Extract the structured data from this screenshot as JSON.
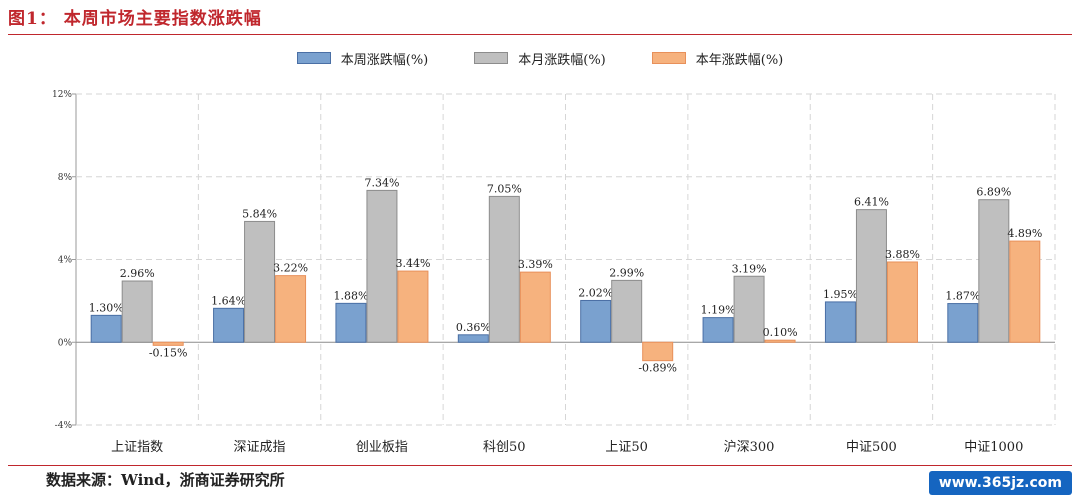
{
  "figure": {
    "title": "图1： 本周市场主要指数涨跌幅",
    "source": "数据来源：Wind，浙商证券研究所",
    "watermark": "www.365jz.com"
  },
  "chart_data": {
    "type": "bar",
    "categories": [
      "上证指数",
      "深证成指",
      "创业板指",
      "科创50",
      "上证50",
      "沪深300",
      "中证500",
      "中证1000"
    ],
    "series": [
      {
        "name": "本周涨跌幅(%)",
        "color": "#7aa1cf",
        "stroke": "#4a6fa5",
        "values": [
          1.3,
          1.64,
          1.88,
          0.36,
          2.02,
          1.19,
          1.95,
          1.87
        ]
      },
      {
        "name": "本月涨跌幅(%)",
        "color": "#bfbfbf",
        "stroke": "#8c8c8c",
        "values": [
          2.96,
          5.84,
          7.34,
          7.05,
          2.99,
          3.19,
          6.41,
          6.89
        ]
      },
      {
        "name": "本年涨跌幅(%)",
        "color": "#f6b27e",
        "stroke": "#e8905a",
        "values": [
          -0.15,
          3.22,
          3.44,
          3.39,
          -0.89,
          0.1,
          3.88,
          4.89
        ]
      }
    ],
    "value_labels": [
      [
        "1.30%",
        "1.64%",
        "1.88%",
        "0.36%",
        "2.02%",
        "1.19%",
        "1.95%",
        "1.87%"
      ],
      [
        "2.96%",
        "5.84%",
        "7.34%",
        "7.05%",
        "2.99%",
        "3.19%",
        "6.41%",
        "6.89%"
      ],
      [
        "-0.15%",
        "3.22%",
        "3.44%",
        "3.39%",
        "-0.89%",
        "0.10%",
        "3.88%",
        "4.89%"
      ]
    ],
    "y_ticks": [
      -4,
      0,
      4,
      8,
      12
    ],
    "y_tick_labels": [
      "-4%",
      "0%",
      "4%",
      "8%",
      "12%"
    ],
    "ylim": [
      -4,
      12
    ],
    "grid": true,
    "legend_position": "top-center"
  }
}
